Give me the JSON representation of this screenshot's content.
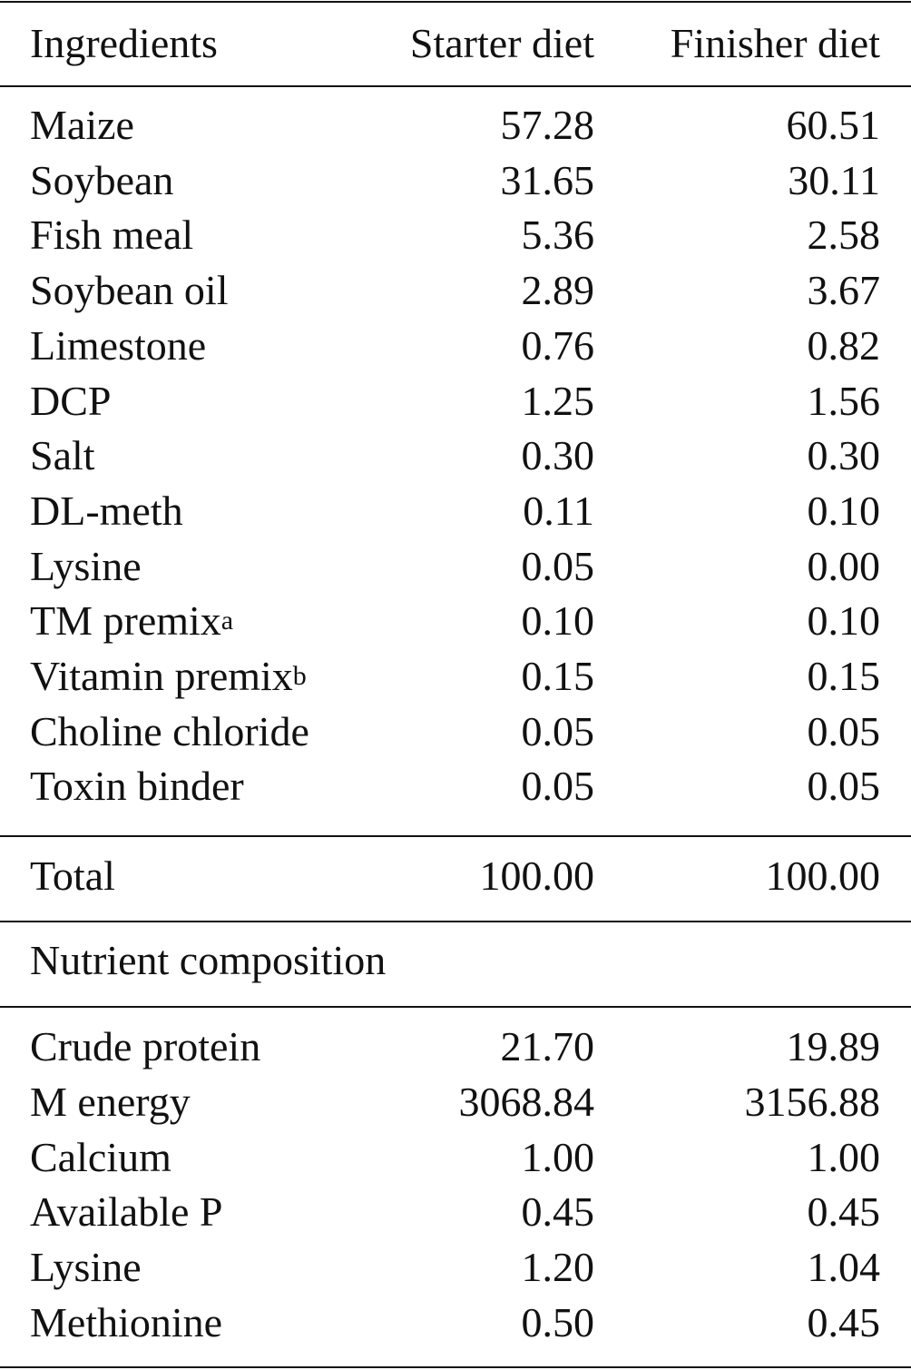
{
  "header": {
    "columns": [
      "Ingredients",
      "Starter diet",
      "Finisher diet"
    ]
  },
  "ingredients": [
    {
      "label": "Maize",
      "starter": "57.28",
      "finisher": "60.51"
    },
    {
      "label": "Soybean",
      "starter": "31.65",
      "finisher": "30.11"
    },
    {
      "label": "Fish meal",
      "starter": "5.36",
      "finisher": "2.58"
    },
    {
      "label": "Soybean oil",
      "starter": "2.89",
      "finisher": "3.67"
    },
    {
      "label": "Limestone",
      "starter": "0.76",
      "finisher": "0.82"
    },
    {
      "label": "DCP",
      "starter": "1.25",
      "finisher": "1.56"
    },
    {
      "label": "Salt",
      "starter": "0.30",
      "finisher": "0.30"
    },
    {
      "label": "DL-meth",
      "starter": "0.11",
      "finisher": "0.10"
    },
    {
      "label": "Lysine",
      "starter": "0.05",
      "finisher": "0.00"
    },
    {
      "label": "TM premix",
      "note": "a",
      "starter": "0.10",
      "finisher": "0.10"
    },
    {
      "label": "Vitamin premix",
      "note": "b",
      "starter": "0.15",
      "finisher": "0.15"
    },
    {
      "label": "Choline chloride",
      "starter": "0.05",
      "finisher": "0.05"
    },
    {
      "label": "Toxin binder",
      "starter": "0.05",
      "finisher": "0.05"
    }
  ],
  "total": {
    "label": "Total",
    "starter": "100.00",
    "finisher": "100.00"
  },
  "nutrient_section": {
    "title": "Nutrient composition"
  },
  "nutrients": [
    {
      "label": "Crude protein",
      "starter": "21.70",
      "finisher": "19.89"
    },
    {
      "label": "M energy",
      "starter": "3068.84",
      "finisher": "3156.88"
    },
    {
      "label": "Calcium",
      "starter": "1.00",
      "finisher": "1.00"
    },
    {
      "label": "Available P",
      "starter": "0.45",
      "finisher": "0.45"
    },
    {
      "label": "Lysine",
      "starter": "1.20",
      "finisher": "1.04"
    },
    {
      "label": "Methionine",
      "starter": "0.50",
      "finisher": "0.45"
    }
  ]
}
